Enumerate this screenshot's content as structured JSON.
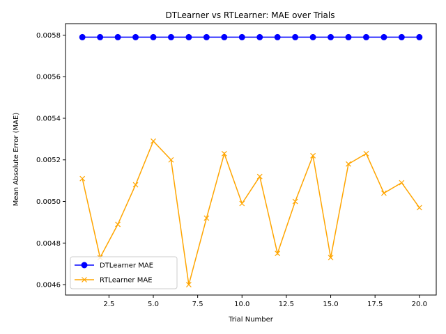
{
  "chart_data": {
    "type": "line",
    "title": "DTLearner vs RTLearner: MAE over Trials",
    "xlabel": "Trial Number",
    "ylabel": "Mean Absolute Error (MAE)",
    "xlim": [
      0.05,
      20.95
    ],
    "ylim": [
      0.00455,
      0.005855
    ],
    "x_ticks": [
      2.5,
      5.0,
      7.5,
      10.0,
      12.5,
      15.0,
      17.5,
      20.0
    ],
    "x_tick_labels": [
      "2.5",
      "5.0",
      "7.5",
      "10.0",
      "12.5",
      "15.0",
      "17.5",
      "20.0"
    ],
    "y_ticks": [
      0.0046,
      0.0048,
      0.005,
      0.0052,
      0.0054,
      0.0056,
      0.0058
    ],
    "y_tick_labels": [
      "0.0046",
      "0.0048",
      "0.0050",
      "0.0052",
      "0.0054",
      "0.0056",
      "0.0058"
    ],
    "grid": false,
    "legend_position": "lower-left",
    "x": [
      1,
      2,
      3,
      4,
      5,
      6,
      7,
      8,
      9,
      10,
      11,
      12,
      13,
      14,
      15,
      16,
      17,
      18,
      19,
      20
    ],
    "series": [
      {
        "name": "DTLearner MAE",
        "color": "#0000ff",
        "marker": "circle",
        "values": [
          0.00579,
          0.00579,
          0.00579,
          0.00579,
          0.00579,
          0.00579,
          0.00579,
          0.00579,
          0.00579,
          0.00579,
          0.00579,
          0.00579,
          0.00579,
          0.00579,
          0.00579,
          0.00579,
          0.00579,
          0.00579,
          0.00579,
          0.00579
        ]
      },
      {
        "name": "RTLearner MAE",
        "color": "#ffa500",
        "marker": "x",
        "values": [
          0.00511,
          0.00473,
          0.00489,
          0.00508,
          0.00529,
          0.0052,
          0.0046,
          0.00492,
          0.00523,
          0.00499,
          0.00512,
          0.00475,
          0.005,
          0.00522,
          0.00473,
          0.00518,
          0.00523,
          0.00504,
          0.00509,
          0.00497
        ]
      }
    ]
  }
}
